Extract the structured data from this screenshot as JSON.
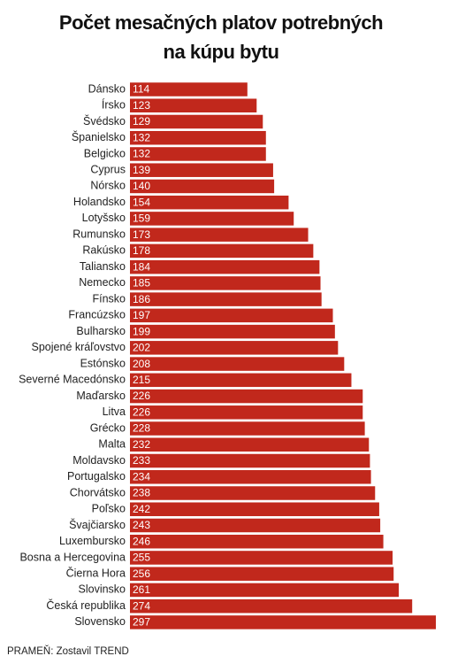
{
  "chart_data": {
    "type": "bar",
    "orientation": "horizontal",
    "title": [
      "Počet mesačných platov potrebných",
      "na kúpu bytu"
    ],
    "categories": [
      "Dánsko",
      "Írsko",
      "Švédsko",
      "Španielsko",
      "Belgicko",
      "Cyprus",
      "Nórsko",
      "Holandsko",
      "Lotyšsko",
      "Rumunsko",
      "Rakúsko",
      "Taliansko",
      "Nemecko",
      "Fínsko",
      "Francúzsko",
      "Bulharsko",
      "Spojené kráľovstvo",
      "Estónsko",
      "Severné Macedónsko",
      "Maďarsko",
      "Litva",
      "Grécko",
      "Malta",
      "Moldavsko",
      "Portugalsko",
      "Chorvátsko",
      "Poľsko",
      "Švajčiarsko",
      "Luxembursko",
      "Bosna a Hercegovina",
      "Čierna Hora",
      "Slovinsko",
      "Česká republika",
      "Slovensko"
    ],
    "values": [
      114,
      123,
      129,
      132,
      132,
      139,
      140,
      154,
      159,
      173,
      178,
      184,
      185,
      186,
      197,
      199,
      202,
      208,
      215,
      226,
      226,
      228,
      232,
      233,
      234,
      238,
      242,
      243,
      246,
      255,
      256,
      261,
      274,
      297
    ],
    "color": "#c1281c",
    "source": "PRAMEŇ: Zostavil TREND"
  }
}
